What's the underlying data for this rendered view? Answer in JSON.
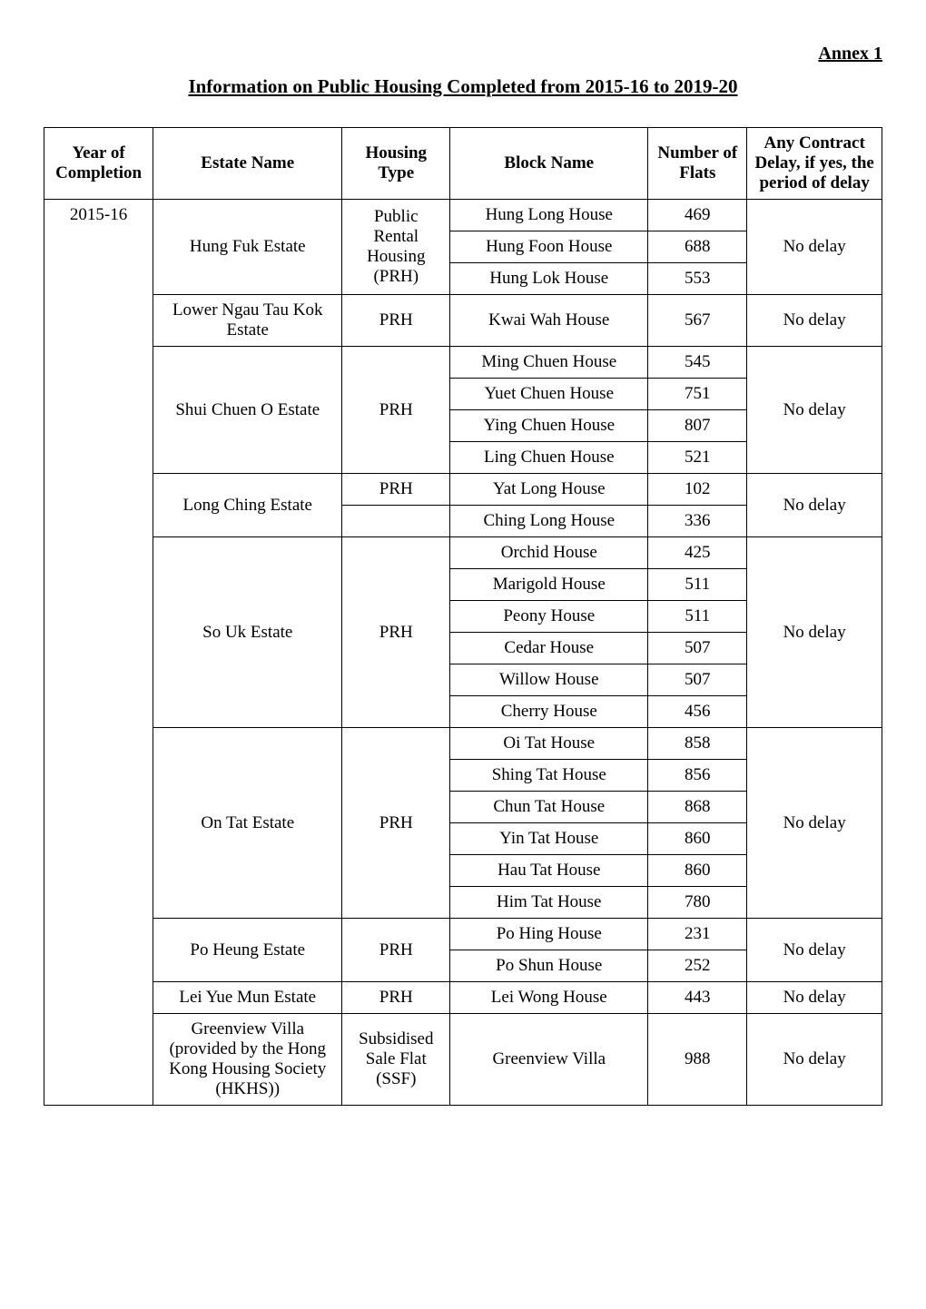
{
  "annex": "Annex 1",
  "title": "Information on Public Housing Completed from 2015-16 to 2019-20",
  "headers": {
    "year": "Year of Completion",
    "estate": "Estate Name",
    "type": "Housing Type",
    "block": "Block Name",
    "flats": "Number of Flats",
    "delay": "Any Contract Delay, if yes, the period of delay"
  },
  "year": "2015-16",
  "estates": [
    {
      "name": "Hung Fuk Estate",
      "type": "Public Rental Housing (PRH)",
      "delay": "No delay",
      "blocks": [
        {
          "name": "Hung Long House",
          "flats": "469"
        },
        {
          "name": "Hung Foon House",
          "flats": "688"
        },
        {
          "name": "Hung Lok House",
          "flats": "553"
        }
      ]
    },
    {
      "name": "Lower Ngau Tau Kok Estate",
      "type": "PRH",
      "delay": "No delay",
      "blocks": [
        {
          "name": "Kwai Wah House",
          "flats": "567"
        }
      ]
    },
    {
      "name": "Shui Chuen O Estate",
      "type": "PRH",
      "delay": "No delay",
      "blocks": [
        {
          "name": "Ming Chuen House",
          "flats": "545"
        },
        {
          "name": "Yuet Chuen House",
          "flats": "751"
        },
        {
          "name": "Ying Chuen House",
          "flats": "807"
        },
        {
          "name": "Ling Chuen House",
          "flats": "521"
        }
      ]
    },
    {
      "name": "Long Ching Estate",
      "type": "PRH",
      "delay": "No delay",
      "blocks": [
        {
          "name": "Yat Long House",
          "flats": "102"
        },
        {
          "name": "Ching Long House",
          "flats": "336"
        }
      ]
    },
    {
      "name": "So Uk Estate",
      "type": "PRH",
      "delay": "No delay",
      "blocks": [
        {
          "name": "Orchid House",
          "flats": "425"
        },
        {
          "name": "Marigold House",
          "flats": "511"
        },
        {
          "name": "Peony House",
          "flats": "511"
        },
        {
          "name": "Cedar House",
          "flats": "507"
        },
        {
          "name": "Willow House",
          "flats": "507"
        },
        {
          "name": "Cherry House",
          "flats": "456"
        }
      ]
    },
    {
      "name": "On Tat Estate",
      "type": "PRH",
      "delay": "No delay",
      "blocks": [
        {
          "name": "Oi Tat House",
          "flats": "858"
        },
        {
          "name": "Shing Tat House",
          "flats": "856"
        },
        {
          "name": "Chun Tat House",
          "flats": "868"
        },
        {
          "name": "Yin Tat House",
          "flats": "860"
        },
        {
          "name": "Hau Tat House",
          "flats": "860"
        },
        {
          "name": "Him Tat House",
          "flats": "780"
        }
      ]
    },
    {
      "name": "Po Heung Estate",
      "type": "PRH",
      "delay": "No delay",
      "blocks": [
        {
          "name": "Po Hing House",
          "flats": "231"
        },
        {
          "name": "Po Shun House",
          "flats": "252"
        }
      ]
    },
    {
      "name": "Lei Yue Mun Estate",
      "type": "PRH",
      "delay": "No delay",
      "blocks": [
        {
          "name": "Lei Wong House",
          "flats": "443"
        }
      ]
    },
    {
      "name": "Greenview Villa (provided by the Hong Kong Housing Society (HKHS))",
      "type": "Subsidised Sale Flat (SSF)",
      "delay": "No delay",
      "blocks": [
        {
          "name": "Greenview Villa",
          "flats": "988"
        }
      ]
    }
  ]
}
